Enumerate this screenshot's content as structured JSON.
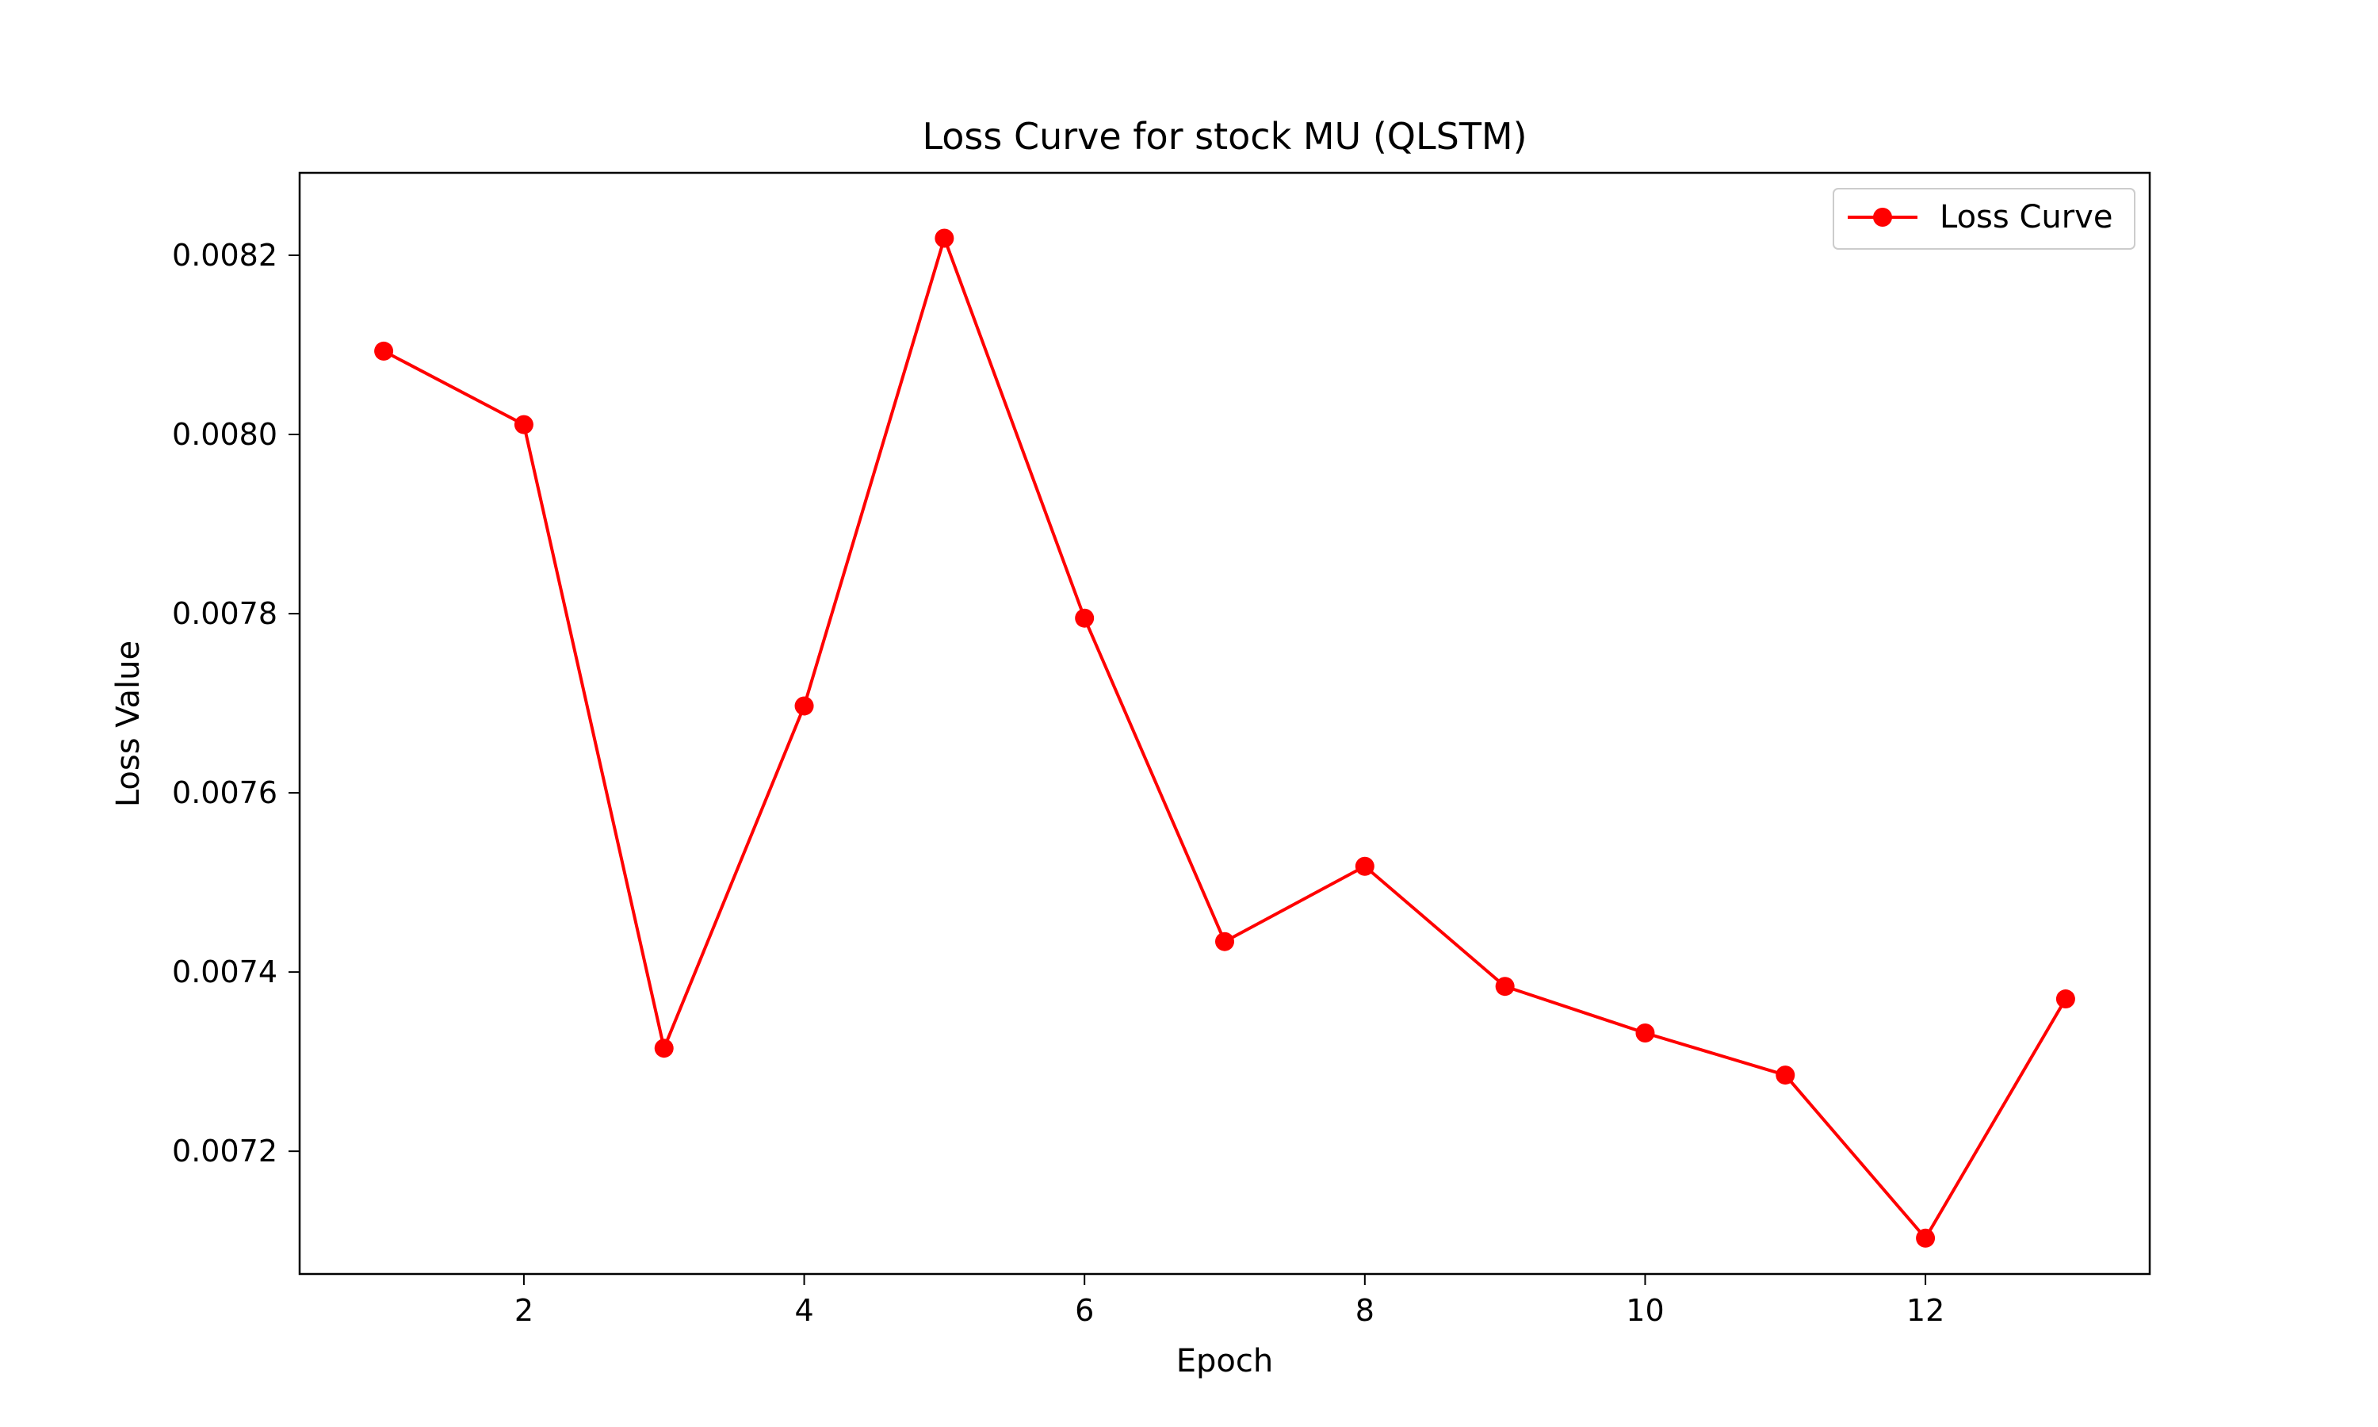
{
  "chart_data": {
    "type": "line",
    "title": "Loss Curve for stock MU (QLSTM)",
    "xlabel": "Epoch",
    "ylabel": "Loss Value",
    "xlim": [
      0.4,
      13.6
    ],
    "ylim": [
      0.007063,
      0.008292
    ],
    "x_ticks": [
      2,
      4,
      6,
      8,
      10,
      12
    ],
    "x_tick_labels": [
      "2",
      "4",
      "6",
      "8",
      "10",
      "12"
    ],
    "y_ticks": [
      0.0072,
      0.0074,
      0.0076,
      0.0078,
      0.008,
      0.0082
    ],
    "y_tick_labels": [
      "0.0072",
      "0.0074",
      "0.0076",
      "0.0078",
      "0.0080",
      "0.0082"
    ],
    "grid": false,
    "legend_position": "top-right",
    "series": [
      {
        "name": "Loss Curve",
        "color": "#ff0000",
        "marker": "circle",
        "x": [
          1,
          2,
          3,
          4,
          5,
          6,
          7,
          8,
          9,
          10,
          11,
          12,
          13
        ],
        "values": [
          0.008093,
          0.008011,
          0.007315,
          0.007697,
          0.008219,
          0.007795,
          0.007434,
          0.007518,
          0.007384,
          0.007332,
          0.007285,
          0.007103,
          0.00737
        ]
      }
    ]
  }
}
